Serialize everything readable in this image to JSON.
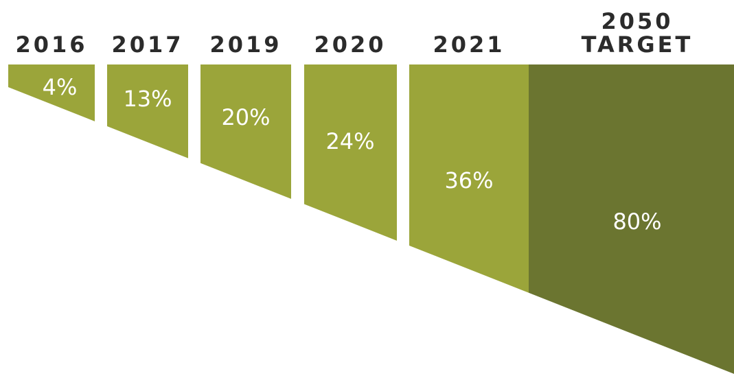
{
  "chart_data": {
    "type": "bar",
    "title": "",
    "xlabel": "",
    "ylabel": "",
    "categories": [
      "2016",
      "2017",
      "2019",
      "2020",
      "2021",
      "2050 TARGET"
    ],
    "category_lines": [
      [
        "2016"
      ],
      [
        "2017"
      ],
      [
        "2019"
      ],
      [
        "2020"
      ],
      [
        "2021"
      ],
      [
        "2050",
        "TARGET"
      ]
    ],
    "values": [
      4,
      13,
      20,
      24,
      36,
      80
    ],
    "value_labels": [
      "4%",
      "13%",
      "20%",
      "24%",
      "36%",
      "80%"
    ],
    "ylim": [
      0,
      80
    ],
    "grid": false,
    "legend": "none",
    "colors": {
      "bar": "#9ba53a",
      "target_bar": "#6b7530",
      "year_label": "#2b2b2b",
      "value_label": "#ffffff"
    }
  }
}
